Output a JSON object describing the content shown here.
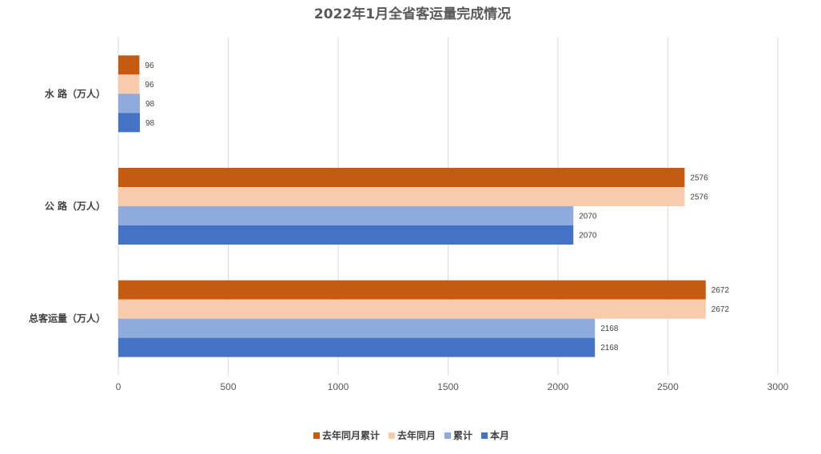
{
  "chart_data": {
    "type": "bar",
    "orientation": "horizontal",
    "title": "2022年1月全省客运量完成情况",
    "categories": [
      "水 路（万人）",
      "公 路（万人）",
      "总客运量（万人）"
    ],
    "series": [
      {
        "name": "去年同月累计",
        "color": "#C55A11",
        "values": [
          96,
          2576,
          2672
        ]
      },
      {
        "name": "去年同月",
        "color": "#F8CBAD",
        "values": [
          96,
          2576,
          2672
        ]
      },
      {
        "name": "累计",
        "color": "#8FAADC",
        "values": [
          98,
          2070,
          2168
        ]
      },
      {
        "name": "本月",
        "color": "#4472C4",
        "values": [
          98,
          2070,
          2168
        ]
      }
    ],
    "xlim": [
      0,
      3000
    ],
    "xticks": [
      0,
      500,
      1000,
      1500,
      2000,
      2500,
      3000
    ],
    "grid": "vertical",
    "legend": "bottom",
    "data_labels": true
  }
}
